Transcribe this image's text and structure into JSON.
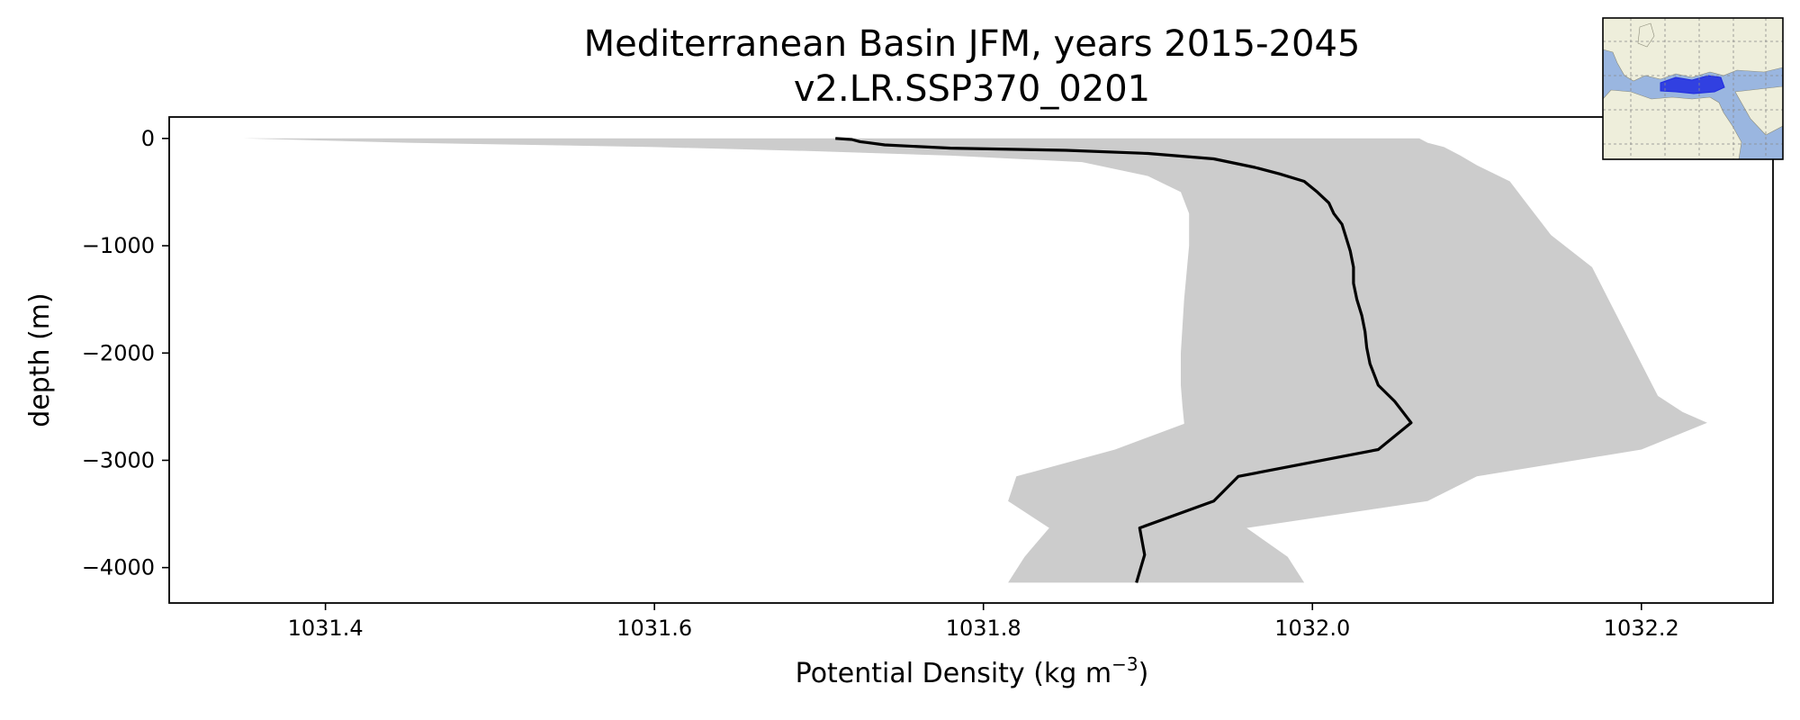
{
  "chart_data": {
    "type": "line",
    "title": "Mediterranean Basin JFM, years 2015-2045",
    "subtitle": "v2.LR.SSP370_0201",
    "xlabel": "Potential Density (kg m",
    "xlabel_unit_exponent": "−3",
    "xlabel_suffix": ")",
    "ylabel": "depth (m)",
    "xlim": [
      1031.305,
      1032.28
    ],
    "ylim": [
      -4330,
      200
    ],
    "x_ticks": [
      {
        "value": 1031.4,
        "label": "1031.4"
      },
      {
        "value": 1031.6,
        "label": "1031.6"
      },
      {
        "value": 1031.8,
        "label": "1031.8"
      },
      {
        "value": 1032.0,
        "label": "1032.0"
      },
      {
        "value": 1032.2,
        "label": "1032.2"
      }
    ],
    "y_ticks": [
      {
        "value": 0,
        "label": "0"
      },
      {
        "value": -1000,
        "label": "−1000"
      },
      {
        "value": -2000,
        "label": "−2000"
      },
      {
        "value": -3000,
        "label": "−3000"
      },
      {
        "value": -4000,
        "label": "−4000"
      }
    ],
    "grid": false,
    "legend": "none",
    "mean_color": "#000000",
    "range_color": "#cccccc",
    "mean_profile": {
      "x": [
        1031.71,
        1031.72,
        1031.725,
        1031.73,
        1031.74,
        1031.78,
        1031.85,
        1031.9,
        1031.94,
        1031.965,
        1031.98,
        1031.995,
        1032.003,
        1032.01,
        1032.013,
        1032.018,
        1032.02,
        1032.023,
        1032.025,
        1032.025,
        1032.027,
        1032.03,
        1032.032,
        1032.033,
        1032.035,
        1032.04,
        1032.05,
        1032.06,
        1032.04,
        1031.955,
        1031.94,
        1031.895,
        1031.898,
        1031.893
      ],
      "y": [
        0,
        -10,
        -30,
        -40,
        -60,
        -90,
        -110,
        -140,
        -190,
        -270,
        -330,
        -400,
        -500,
        -600,
        -700,
        -800,
        -900,
        -1050,
        -1200,
        -1350,
        -1500,
        -1650,
        -1800,
        -1950,
        -2100,
        -2300,
        -2450,
        -2650,
        -2900,
        -3150,
        -3380,
        -3630,
        -3880,
        -4140
      ]
    },
    "range_band": {
      "min_x": [
        1031.35,
        1031.45,
        1031.6,
        1031.7,
        1031.78,
        1031.86,
        1031.9,
        1031.92,
        1031.925,
        1031.925,
        1031.922,
        1031.92,
        1031.92,
        1031.921,
        1031.922,
        1031.922,
        1031.88,
        1031.82,
        1031.815,
        1031.84,
        1031.825,
        1031.815
      ],
      "min_y": [
        0,
        -40,
        -80,
        -120,
        -160,
        -220,
        -350,
        -500,
        -700,
        -1000,
        -1500,
        -2000,
        -2300,
        -2500,
        -2650,
        -2660,
        -2900,
        -3150,
        -3380,
        -3630,
        -3900,
        -4140
      ],
      "max_x": [
        1032.065,
        1032.07,
        1032.08,
        1032.085,
        1032.09,
        1032.1,
        1032.12,
        1032.13,
        1032.145,
        1032.17,
        1032.18,
        1032.19,
        1032.2,
        1032.21,
        1032.225,
        1032.24,
        1032.2,
        1032.1,
        1032.07,
        1031.96,
        1031.985,
        1031.995
      ],
      "max_y": [
        0,
        -40,
        -80,
        -120,
        -160,
        -250,
        -400,
        -600,
        -900,
        -1200,
        -1500,
        -1800,
        -2100,
        -2400,
        -2550,
        -2650,
        -2900,
        -3150,
        -3380,
        -3630,
        -3900,
        -4140
      ]
    },
    "inset_map": {
      "ocean_color": "#9ab6e0",
      "land_color": "#eeeedb",
      "highlight_color": "#1f2be0"
    }
  }
}
